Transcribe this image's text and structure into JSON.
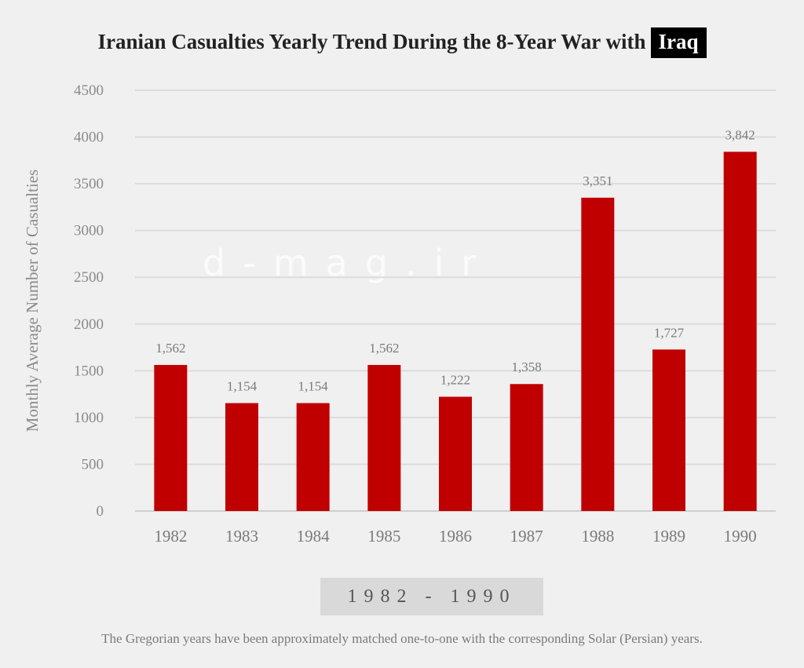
{
  "chart_data": {
    "type": "bar",
    "title": "Iranian Casualties Yearly Trend During the 8-Year War with",
    "title_highlight": "Iraq",
    "xlabel": "",
    "ylabel": "Monthly Average Number of Casualties",
    "categories": [
      "1982",
      "1983",
      "1984",
      "1985",
      "1986",
      "1987",
      "1988",
      "1989",
      "1990"
    ],
    "values": [
      1562,
      1154,
      1154,
      1562,
      1222,
      1358,
      3351,
      1727,
      3842
    ],
    "data_labels": [
      "1,562",
      "1,154",
      "1,154",
      "1,562",
      "1,222",
      "1,358",
      "3,351",
      "1,727",
      "3,842"
    ],
    "ylim": [
      0,
      4500
    ],
    "yticks": [
      0,
      500,
      1000,
      1500,
      2000,
      2500,
      3000,
      3500,
      4000,
      4500
    ],
    "grid": true,
    "bar_color": "#c00000",
    "legend": "none"
  },
  "range_badge": "1982 - 1990",
  "footnote": "The Gregorian years have been approximately matched one-to-one with the corresponding Solar (Persian) years.",
  "watermark": "d-mag.ir"
}
